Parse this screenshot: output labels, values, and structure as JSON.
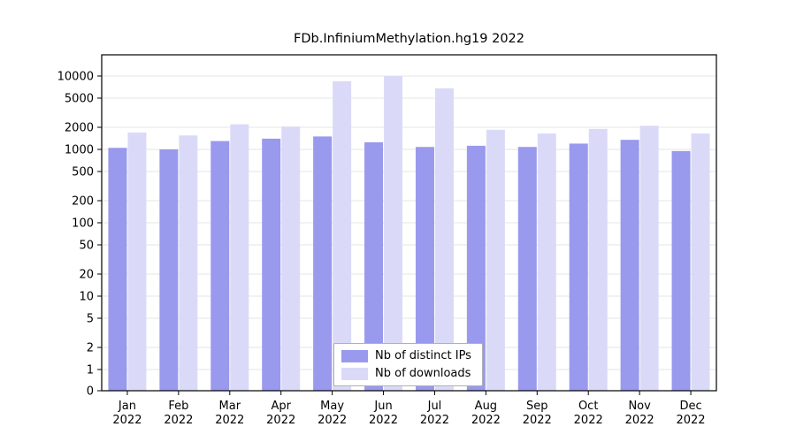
{
  "chart_data": {
    "type": "bar",
    "title": "FDb.InfiniumMethylation.hg19 2022",
    "categories": [
      "Jan 2022",
      "Feb 2022",
      "Mar 2022",
      "Apr 2022",
      "May 2022",
      "Jun 2022",
      "Jul 2022",
      "Aug 2022",
      "Sep 2022",
      "Oct 2022",
      "Nov 2022",
      "Dec 2022"
    ],
    "series": [
      {
        "name": "Nb of distinct IPs",
        "color": "#9999ee",
        "values": [
          1050,
          1000,
          1300,
          1400,
          1500,
          1250,
          1080,
          1120,
          1080,
          1200,
          1350,
          950
        ]
      },
      {
        "name": "Nb of downloads",
        "color": "#dadaf8",
        "values": [
          1700,
          1550,
          2200,
          2050,
          8500,
          10000,
          6800,
          1850,
          1650,
          1900,
          2100,
          1650
        ]
      }
    ],
    "yscale": "log",
    "yticks": [
      0,
      1,
      2,
      5,
      10,
      20,
      50,
      100,
      200,
      500,
      1000,
      2000,
      5000,
      10000
    ],
    "ylim": [
      0,
      10000
    ],
    "grid": "horizontal",
    "legend_position": "bottom-center-inside"
  }
}
